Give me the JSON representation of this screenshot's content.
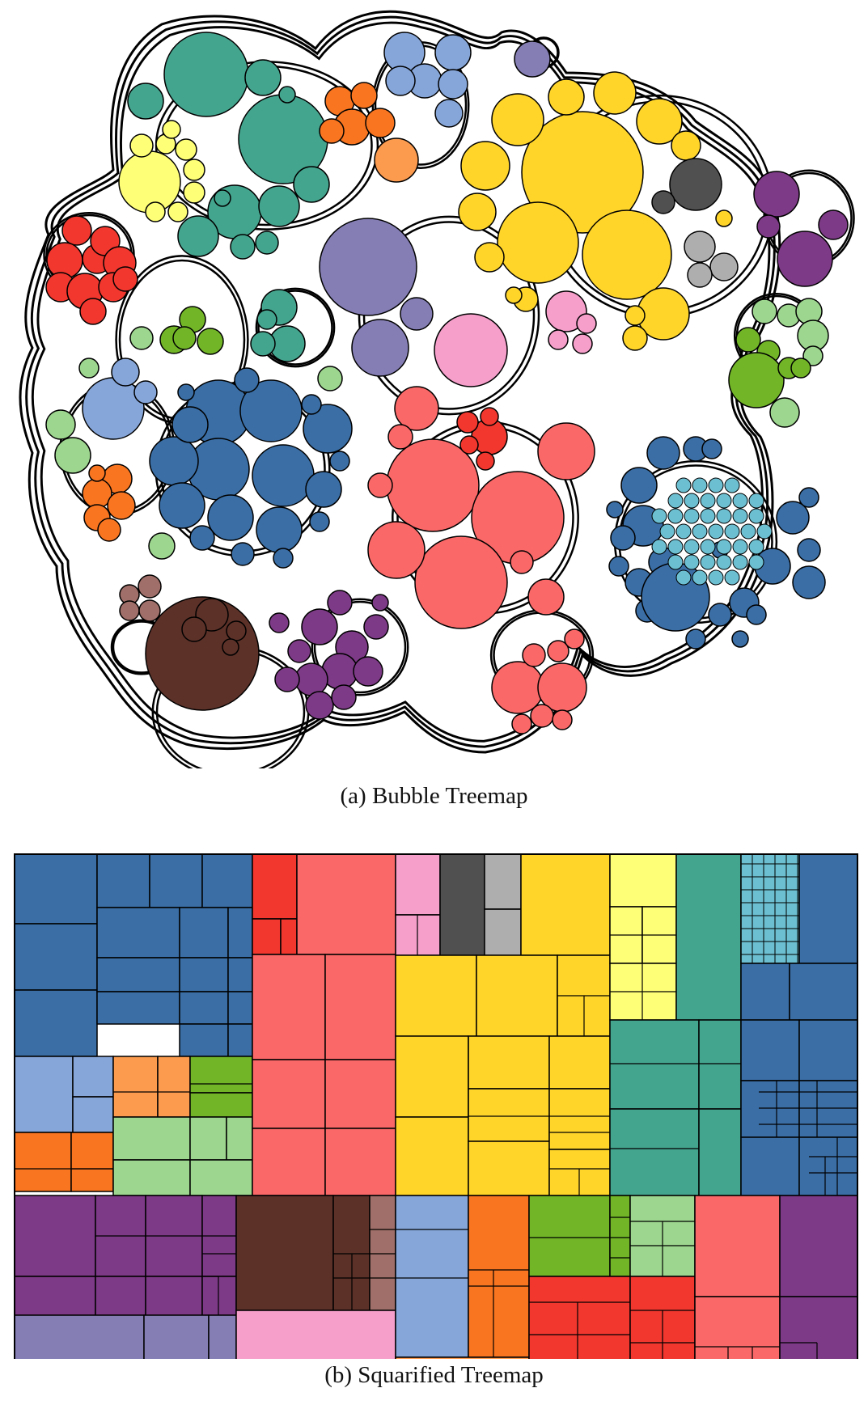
{
  "captions": {
    "bubble": "(a) Bubble Treemap",
    "squarified": "(b) Squarified Treemap"
  },
  "palette": {
    "steel_blue": "#3A6EA5",
    "light_blue": "#86A6DA",
    "salmon": "#FB6868",
    "red": "#F1372E",
    "gold": "#FFD52A",
    "light_yellow": "#FFFF77",
    "teal": "#44A58E",
    "cyan": "#6CBFD1",
    "purple": "#7D3A86",
    "lavender": "#847EB5",
    "dark_brown": "#5C3128",
    "light_brown": "#A06F69",
    "pink": "#F69FCB",
    "orange": "#F97520",
    "light_orange": "#FC9A4E",
    "green": "#72B627",
    "light_green": "#9DD68E",
    "dark_gray": "#505050",
    "light_gray": "#AEAEAE"
  }
}
